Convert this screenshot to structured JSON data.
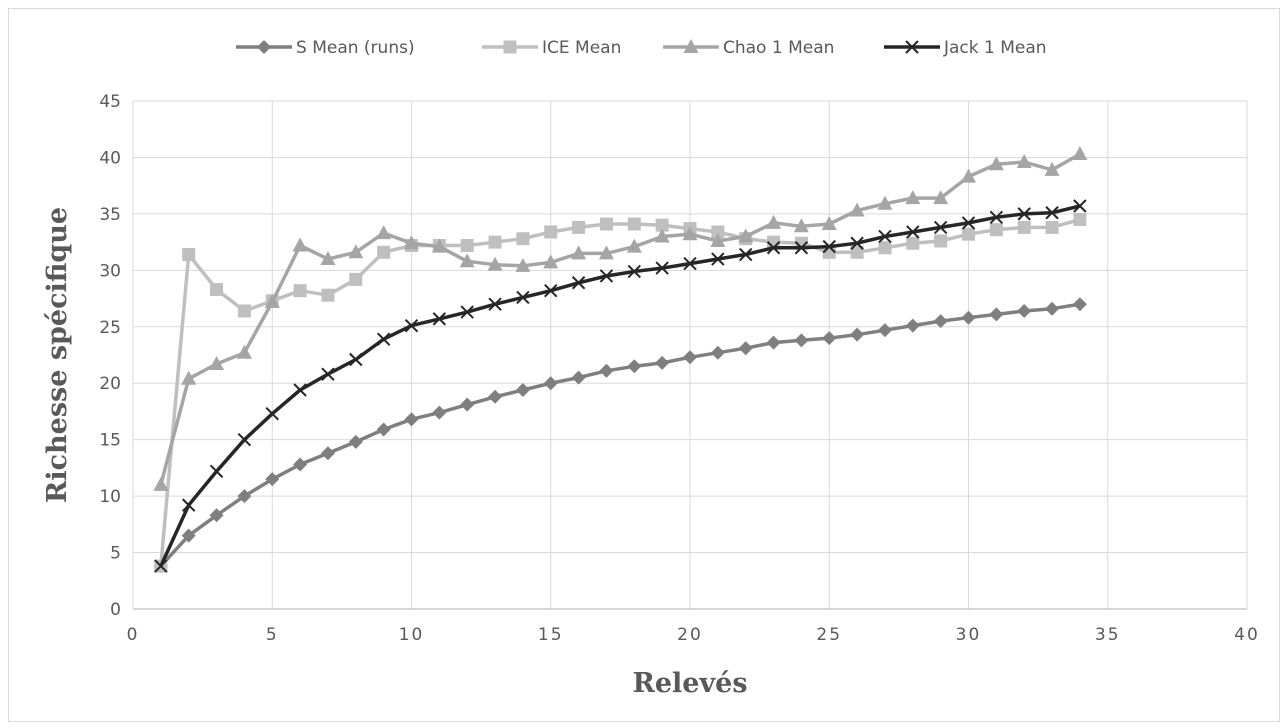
{
  "chart_data": {
    "type": "line",
    "title": "",
    "xlabel": "Relevés",
    "ylabel": "Richesse spécifique",
    "xlim": [
      0,
      40
    ],
    "ylim": [
      0,
      45
    ],
    "xticks": [
      0,
      5,
      10,
      15,
      20,
      25,
      30,
      35,
      40
    ],
    "yticks": [
      0,
      5,
      10,
      15,
      20,
      25,
      30,
      35,
      40,
      45
    ],
    "grid": true,
    "legend_position": "top",
    "x": [
      1,
      2,
      3,
      4,
      5,
      6,
      7,
      8,
      9,
      10,
      11,
      12,
      13,
      14,
      15,
      16,
      17,
      18,
      19,
      20,
      21,
      22,
      23,
      24,
      25,
      26,
      27,
      28,
      29,
      30,
      31,
      32,
      33,
      34
    ],
    "series": [
      {
        "name": "S Mean (runs)",
        "color": "#7f7f7f",
        "marker": "diamond",
        "values": [
          3.8,
          6.5,
          8.3,
          10.0,
          11.5,
          12.8,
          13.8,
          14.8,
          15.9,
          16.8,
          17.4,
          18.1,
          18.8,
          19.4,
          20.0,
          20.5,
          21.1,
          21.5,
          21.8,
          22.3,
          22.7,
          23.1,
          23.6,
          23.8,
          24.0,
          24.3,
          24.7,
          25.1,
          25.5,
          25.8,
          26.1,
          26.4,
          26.6,
          27.0
        ]
      },
      {
        "name": "ICE Mean",
        "color": "#bfbfbf",
        "marker": "square",
        "values": [
          3.8,
          31.4,
          28.3,
          26.4,
          27.3,
          28.2,
          27.8,
          29.2,
          31.6,
          32.2,
          32.2,
          32.2,
          32.5,
          32.8,
          33.4,
          33.8,
          34.1,
          34.1,
          34.0,
          33.7,
          33.4,
          32.8,
          32.5,
          32.4,
          31.6,
          31.6,
          32.0,
          32.4,
          32.6,
          33.2,
          33.6,
          33.8,
          33.8,
          34.5
        ]
      },
      {
        "name": "Chao 1 Mean",
        "color": "#a5a5a5",
        "marker": "triangle",
        "values": [
          11.0,
          20.4,
          21.7,
          22.7,
          27.2,
          32.2,
          31.0,
          31.6,
          33.3,
          32.4,
          32.1,
          30.8,
          30.5,
          30.4,
          30.7,
          31.5,
          31.5,
          32.1,
          33.0,
          33.2,
          32.6,
          33.0,
          34.2,
          33.9,
          34.1,
          35.3,
          35.9,
          36.4,
          36.4,
          38.3,
          39.4,
          39.6,
          38.9,
          40.3
        ]
      },
      {
        "name": "Jack 1 Mean",
        "color": "#262626",
        "marker": "x",
        "values": [
          3.8,
          9.2,
          12.2,
          15.0,
          17.3,
          19.4,
          20.8,
          22.1,
          23.9,
          25.1,
          25.7,
          26.3,
          27.0,
          27.6,
          28.2,
          28.9,
          29.5,
          29.9,
          30.2,
          30.6,
          31.0,
          31.4,
          32.0,
          32.0,
          32.1,
          32.4,
          33.0,
          33.4,
          33.8,
          34.2,
          34.7,
          35.0,
          35.1,
          35.7
        ]
      }
    ]
  }
}
